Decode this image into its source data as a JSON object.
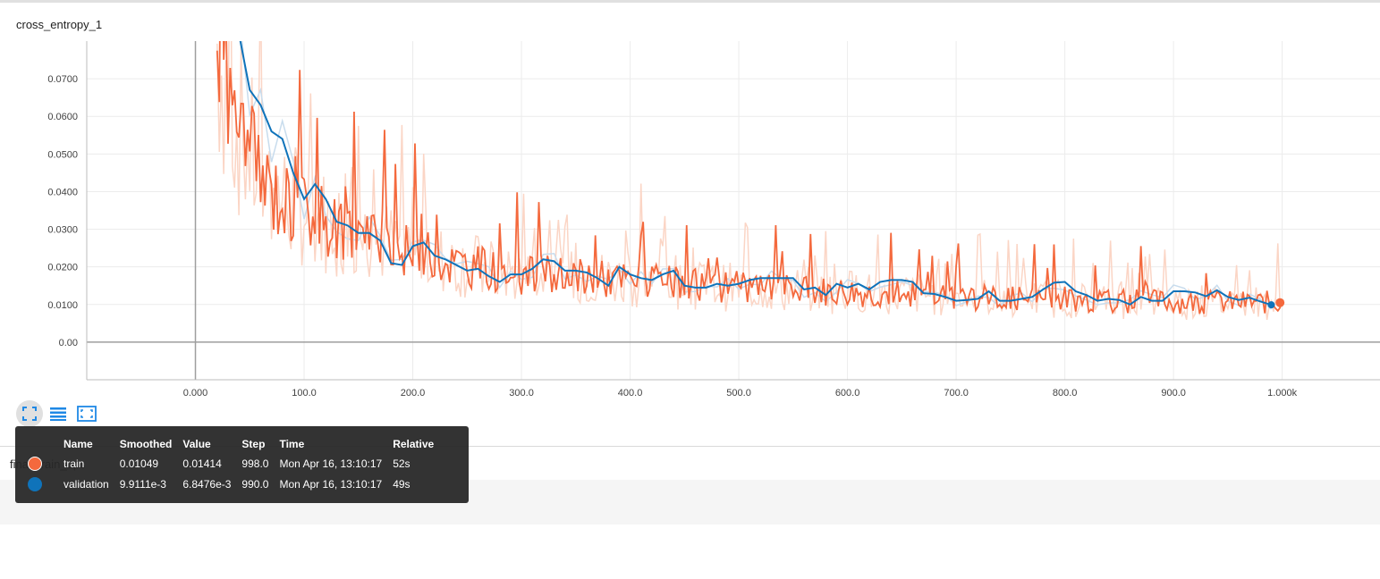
{
  "card": {
    "title": "cross_entropy_1"
  },
  "next_card": {
    "title": "final_train_ops"
  },
  "toolbar": {
    "buttons": [
      {
        "name": "expand",
        "icon": "fullscreen-icon"
      },
      {
        "name": "toggle-log",
        "icon": "list-icon"
      },
      {
        "name": "fit-domain",
        "icon": "fit-domain-icon"
      }
    ]
  },
  "tooltip": {
    "headers": {
      "name": "Name",
      "smoothed": "Smoothed",
      "value": "Value",
      "step": "Step",
      "time": "Time",
      "relative": "Relative"
    },
    "rows": [
      {
        "name": "train",
        "smoothed": "0.01049",
        "value": "0.01414",
        "step": "998.0",
        "time": "Mon Apr 16, 13:10:17",
        "relative": "52s",
        "color": "#f4693d"
      },
      {
        "name": "validation",
        "smoothed": "9.9111e-3",
        "value": "6.8476e-3",
        "step": "990.0",
        "time": "Mon Apr 16, 13:10:17",
        "relative": "49s",
        "color": "#0f73ba"
      }
    ]
  },
  "chart_data": {
    "type": "line",
    "title": "cross_entropy_1",
    "xlabel": "",
    "ylabel": "",
    "xlim": [
      -100,
      1090
    ],
    "ylim": [
      -0.01,
      0.08
    ],
    "x_ticks": [
      0,
      100,
      200,
      300,
      400,
      500,
      600,
      700,
      800,
      900,
      1000
    ],
    "x_tick_labels": [
      "0.000",
      "100.0",
      "200.0",
      "300.0",
      "400.0",
      "500.0",
      "600.0",
      "700.0",
      "800.0",
      "900.0",
      "1.000k"
    ],
    "y_ticks": [
      0,
      0.01,
      0.02,
      0.03,
      0.04,
      0.05,
      0.06,
      0.07
    ],
    "y_tick_labels": [
      "0.00",
      "0.0100",
      "0.0200",
      "0.0300",
      "0.0400",
      "0.0500",
      "0.0600",
      "0.0700"
    ],
    "grid": true,
    "colors": {
      "train": "#f4693d",
      "train_raw": "#fbd5c5",
      "validation": "#0f73ba",
      "validation_raw": "#c8dced"
    },
    "series": [
      {
        "name": "train",
        "x": [
          20,
          35,
          50,
          65,
          80,
          95,
          110,
          125,
          140,
          160,
          180,
          200,
          220,
          240,
          260,
          280,
          300,
          320,
          340,
          360,
          380,
          400,
          420,
          440,
          460,
          480,
          500,
          520,
          540,
          560,
          580,
          600,
          620,
          640,
          660,
          680,
          700,
          720,
          740,
          760,
          780,
          800,
          820,
          840,
          860,
          880,
          900,
          920,
          940,
          960,
          980,
          998
        ],
        "values": [
          0.08,
          0.06,
          0.05,
          0.042,
          0.038,
          0.036,
          0.034,
          0.031,
          0.03,
          0.028,
          0.026,
          0.024,
          0.022,
          0.021,
          0.02,
          0.019,
          0.018,
          0.018,
          0.017,
          0.0175,
          0.017,
          0.0165,
          0.016,
          0.0155,
          0.015,
          0.015,
          0.0145,
          0.0145,
          0.014,
          0.014,
          0.0135,
          0.0135,
          0.013,
          0.013,
          0.0128,
          0.0125,
          0.0125,
          0.012,
          0.012,
          0.0118,
          0.0115,
          0.0115,
          0.0112,
          0.011,
          0.011,
          0.0108,
          0.0107,
          0.0106,
          0.0105,
          0.0105,
          0.0105,
          0.01049
        ]
      },
      {
        "name": "validation",
        "x": [
          40,
          50,
          60,
          70,
          80,
          90,
          100,
          110,
          120,
          130,
          140,
          150,
          160,
          170,
          180,
          190,
          200,
          210,
          220,
          230,
          240,
          250,
          260,
          270,
          280,
          290,
          300,
          310,
          320,
          330,
          340,
          350,
          360,
          370,
          380,
          390,
          400,
          410,
          420,
          430,
          440,
          450,
          460,
          470,
          480,
          490,
          500,
          510,
          520,
          530,
          540,
          550,
          560,
          570,
          580,
          590,
          600,
          610,
          620,
          630,
          640,
          650,
          660,
          670,
          680,
          690,
          700,
          710,
          720,
          730,
          740,
          750,
          760,
          770,
          780,
          790,
          800,
          810,
          820,
          830,
          840,
          850,
          860,
          870,
          880,
          890,
          900,
          910,
          920,
          930,
          940,
          950,
          960,
          970,
          980,
          990
        ],
        "values": [
          0.082,
          0.067,
          0.063,
          0.056,
          0.054,
          0.045,
          0.038,
          0.042,
          0.038,
          0.032,
          0.031,
          0.029,
          0.029,
          0.027,
          0.021,
          0.0205,
          0.0255,
          0.0265,
          0.023,
          0.022,
          0.0205,
          0.019,
          0.0195,
          0.0175,
          0.016,
          0.018,
          0.018,
          0.0195,
          0.022,
          0.0215,
          0.019,
          0.019,
          0.0185,
          0.017,
          0.015,
          0.02,
          0.018,
          0.017,
          0.0165,
          0.018,
          0.019,
          0.015,
          0.0145,
          0.0145,
          0.0155,
          0.015,
          0.0155,
          0.0165,
          0.017,
          0.017,
          0.017,
          0.017,
          0.014,
          0.0145,
          0.0125,
          0.0155,
          0.0145,
          0.0155,
          0.014,
          0.016,
          0.0165,
          0.0165,
          0.016,
          0.013,
          0.0128,
          0.012,
          0.011,
          0.0112,
          0.0115,
          0.0135,
          0.011,
          0.011,
          0.0115,
          0.012,
          0.014,
          0.0158,
          0.016,
          0.0135,
          0.0125,
          0.011,
          0.0115,
          0.0112,
          0.01,
          0.012,
          0.011,
          0.011,
          0.0135,
          0.0135,
          0.0132,
          0.0122,
          0.0138,
          0.012,
          0.0112,
          0.0118,
          0.0108,
          0.0099111
        ]
      }
    ]
  }
}
